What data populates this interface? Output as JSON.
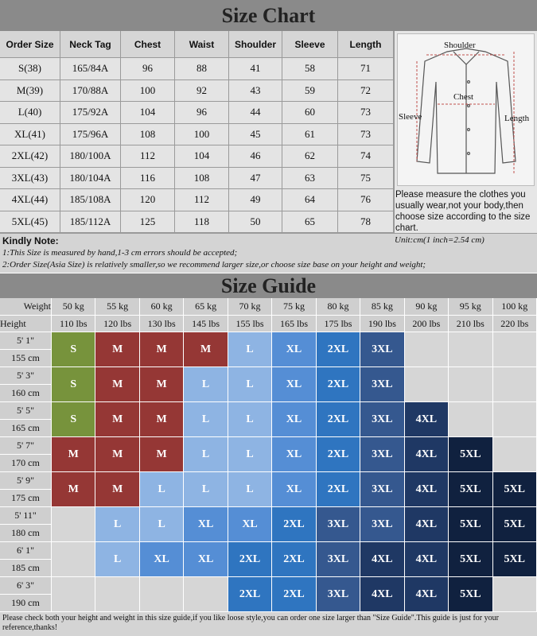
{
  "size_chart": {
    "title": "Size Chart",
    "headers": [
      "Order Size",
      "Neck Tag",
      "Chest",
      "Waist",
      "Shoulder",
      "Sleeve",
      "Length"
    ],
    "rows": [
      [
        "S(38)",
        "165/84A",
        96,
        88,
        41,
        58,
        71
      ],
      [
        "M(39)",
        "170/88A",
        100,
        92,
        43,
        59,
        72
      ],
      [
        "L(40)",
        "175/92A",
        104,
        96,
        44,
        60,
        73
      ],
      [
        "XL(41)",
        "175/96A",
        108,
        100,
        45,
        61,
        73
      ],
      [
        "2XL(42)",
        "180/100A",
        112,
        104,
        46,
        62,
        74
      ],
      [
        "3XL(43)",
        "180/104A",
        116,
        108,
        47,
        63,
        75
      ],
      [
        "4XL(44)",
        "185/108A",
        120,
        112,
        49,
        64,
        76
      ],
      [
        "5XL(45)",
        "185/112A",
        125,
        118,
        50,
        65,
        78
      ]
    ]
  },
  "diagram": {
    "labels": {
      "shoulder": "Shoulder",
      "chest": "Chest",
      "sleeve": "Sleeve",
      "length": "Length"
    }
  },
  "measure_note": "Please measure the clothes you usually wear,not your body,then choose size according to the size chart.",
  "unit_note": "Unit:cm(1 inch=2.54 cm)",
  "kindly_note": {
    "title": "Kindly Note:",
    "lines": [
      "1:This Size is measured by hand,1-3 cm errors should be accepted;",
      "2:Order Size(Asia Size) is relatively smaller,so we recommend larger size,or choose size base on your height and weight;"
    ]
  },
  "size_guide": {
    "title": "Size Guide",
    "weight_label": "Weight",
    "height_label": "Height",
    "weights_kg": [
      "50 kg",
      "55 kg",
      "60 kg",
      "65 kg",
      "70 kg",
      "75 kg",
      "80 kg",
      "85 kg",
      "90 kg",
      "95 kg",
      "100 kg"
    ],
    "weights_lbs": [
      "110 lbs",
      "120 lbs",
      "130 lbs",
      "145 lbs",
      "155 lbs",
      "165 lbs",
      "175 lbs",
      "190 lbs",
      "200 lbs",
      "210 lbs",
      "220 lbs"
    ],
    "heights_ft": [
      "5' 1\"",
      "5' 3\"",
      "5' 5\"",
      "5' 7\"",
      "5' 9\"",
      "5' 11\"",
      "6' 1\"",
      "6' 3\""
    ],
    "heights_cm": [
      "155 cm",
      "160 cm",
      "165 cm",
      "170 cm",
      "175 cm",
      "180 cm",
      "185 cm",
      "190 cm"
    ],
    "sizes": [
      [
        "S",
        "M",
        "M",
        "M",
        "L",
        "XL",
        "2XL",
        "3XL",
        null,
        null,
        null
      ],
      [
        "S",
        "M",
        "M",
        "L",
        "L",
        "XL",
        "2XL",
        "3XL",
        null,
        null,
        null
      ],
      [
        "S",
        "M",
        "M",
        "L",
        "L",
        "XL",
        "2XL",
        "3XL",
        "4XL",
        null,
        null
      ],
      [
        "M",
        "M",
        "M",
        "L",
        "L",
        "XL",
        "2XL",
        "3XL",
        "4XL",
        "5XL",
        null
      ],
      [
        "M",
        "M",
        "L",
        "L",
        "L",
        "XL",
        "2XL",
        "3XL",
        "4XL",
        "5XL",
        "5XL"
      ],
      [
        null,
        "L",
        "L",
        "XL",
        "XL",
        "2XL",
        "3XL",
        "3XL",
        "4XL",
        "5XL",
        "5XL"
      ],
      [
        null,
        "L",
        "XL",
        "XL",
        "2XL",
        "2XL",
        "3XL",
        "4XL",
        "4XL",
        "5XL",
        "5XL"
      ],
      [
        null,
        null,
        null,
        null,
        "2XL",
        "2XL",
        "3XL",
        "4XL",
        "4XL",
        "5XL",
        null
      ]
    ],
    "size_colors": {
      "S": "#77933c",
      "M": "#953735",
      "L": "#8eb4e3",
      "XL": "#558ed5",
      "2XL": "#2f75c0",
      "3XL": "#35588f",
      "4XL": "#1f3864",
      "5XL": "#10213f"
    }
  },
  "footer": "Please check both your height and weight in this size guide,if you like loose style,you can order one size larger than \"Size Guide\".This guide is just for your reference,thanks!"
}
